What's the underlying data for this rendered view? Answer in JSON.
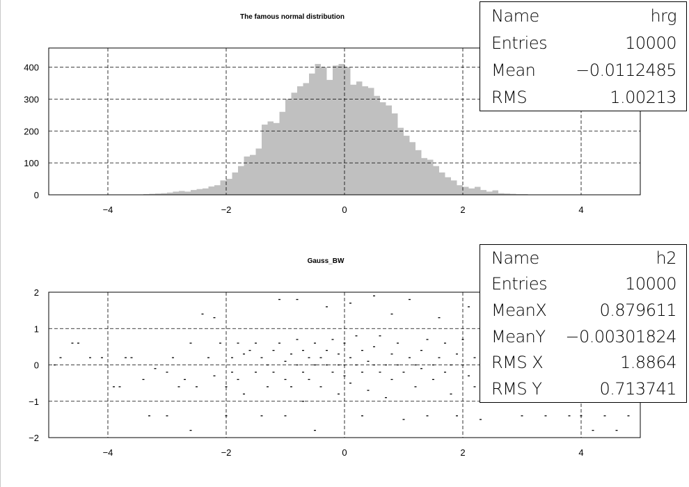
{
  "plots": [
    {
      "title": "The famous normal distribution",
      "stats": [
        {
          "label": "Name",
          "value": "hrg"
        },
        {
          "label": "Entries",
          "value": "10000"
        },
        {
          "label": "Mean",
          "value": "−0.0112485"
        },
        {
          "label": "RMS",
          "value": "1.00213"
        }
      ]
    },
    {
      "title": "Gauss_BW",
      "stats": [
        {
          "label": "Name",
          "value": "h2"
        },
        {
          "label": "Entries",
          "value": "10000"
        },
        {
          "label": "MeanX",
          "value": "0.879611"
        },
        {
          "label": "MeanY",
          "value": "−0.00301824"
        },
        {
          "label": "RMS X",
          "value": "1.8864"
        },
        {
          "label": "RMS Y",
          "value": "0.713741"
        }
      ]
    }
  ],
  "chart_data": [
    {
      "type": "bar",
      "title": "The famous normal distribution",
      "xlim": [
        -5,
        5
      ],
      "ylim": [
        0,
        460
      ],
      "xticks": [
        -4,
        -2,
        0,
        2,
        4
      ],
      "xtick_labels": [
        "−4",
        "−2",
        "0",
        "2",
        "4"
      ],
      "yticks": [
        0,
        100,
        200,
        300,
        400
      ],
      "ytick_labels": [
        "0",
        "100",
        "200",
        "300",
        "400"
      ],
      "grid": true,
      "fill_color": "#c0c0c0",
      "bin_width": 0.1,
      "bin_centers": [
        -3.55,
        -3.45,
        -3.35,
        -3.25,
        -3.15,
        -3.05,
        -2.95,
        -2.85,
        -2.75,
        -2.65,
        -2.55,
        -2.45,
        -2.35,
        -2.25,
        -2.15,
        -2.05,
        -1.95,
        -1.85,
        -1.75,
        -1.65,
        -1.55,
        -1.45,
        -1.35,
        -1.25,
        -1.15,
        -1.05,
        -0.95,
        -0.85,
        -0.75,
        -0.65,
        -0.55,
        -0.45,
        -0.35,
        -0.25,
        -0.15,
        -0.05,
        0.05,
        0.15,
        0.25,
        0.35,
        0.45,
        0.55,
        0.65,
        0.75,
        0.85,
        0.95,
        1.05,
        1.15,
        1.25,
        1.35,
        1.45,
        1.55,
        1.65,
        1.75,
        1.85,
        1.95,
        2.05,
        2.15,
        2.25,
        2.35,
        2.45,
        2.55,
        2.65,
        2.75,
        2.85,
        2.95,
        3.05,
        3.15,
        3.25,
        3.35,
        3.45
      ],
      "values": [
        1,
        1,
        2,
        3,
        4,
        5,
        7,
        10,
        12,
        10,
        15,
        18,
        20,
        26,
        30,
        45,
        50,
        70,
        90,
        120,
        125,
        145,
        220,
        230,
        225,
        260,
        300,
        320,
        340,
        350,
        380,
        410,
        400,
        360,
        405,
        410,
        400,
        345,
        355,
        340,
        335,
        310,
        290,
        280,
        255,
        210,
        185,
        165,
        140,
        115,
        110,
        90,
        70,
        55,
        45,
        30,
        25,
        20,
        25,
        15,
        10,
        14,
        5,
        4,
        3,
        2,
        2,
        1,
        1,
        1,
        1
      ]
    },
    {
      "type": "scatter",
      "title": "Gauss_BW",
      "xlim": [
        -5,
        5
      ],
      "ylim": [
        -2,
        2
      ],
      "xticks": [
        -4,
        -2,
        0,
        2,
        4
      ],
      "xtick_labels": [
        "−4",
        "−2",
        "0",
        "2",
        "4"
      ],
      "yticks": [
        -2,
        -1,
        0,
        1,
        2
      ],
      "ytick_labels": [
        "−2",
        "−1",
        "0",
        "1",
        "2"
      ],
      "grid": true,
      "points": [
        [
          -4.9,
          0.0
        ],
        [
          -4.8,
          0.2
        ],
        [
          -4.6,
          0.6
        ],
        [
          -4.5,
          0.6
        ],
        [
          -4.3,
          0.2
        ],
        [
          -4.1,
          0.2
        ],
        [
          -3.9,
          -0.6
        ],
        [
          -3.8,
          -0.6
        ],
        [
          -3.7,
          0.2
        ],
        [
          -3.6,
          0.2
        ],
        [
          -3.4,
          -0.4
        ],
        [
          -3.3,
          -1.4
        ],
        [
          -3.2,
          -0.1
        ],
        [
          -3.0,
          -0.2
        ],
        [
          -3.0,
          -1.4
        ],
        [
          -2.9,
          0.2
        ],
        [
          -2.8,
          -0.6
        ],
        [
          -2.7,
          -0.4
        ],
        [
          -2.6,
          0.6
        ],
        [
          -2.6,
          -1.8
        ],
        [
          -2.5,
          -0.6
        ],
        [
          -2.4,
          1.4
        ],
        [
          -2.3,
          0.2
        ],
        [
          -2.2,
          -0.3
        ],
        [
          -2.2,
          1.3
        ],
        [
          -2.1,
          0.6
        ],
        [
          -2.0,
          -0.6
        ],
        [
          -2.0,
          -1.4
        ],
        [
          -1.9,
          0.2
        ],
        [
          -1.9,
          -0.2
        ],
        [
          -1.8,
          0.6
        ],
        [
          -1.8,
          -0.4
        ],
        [
          -1.7,
          0.3
        ],
        [
          -1.7,
          -0.8
        ],
        [
          -1.6,
          0.4
        ],
        [
          -1.5,
          -0.2
        ],
        [
          -1.5,
          0.6
        ],
        [
          -1.4,
          0.2
        ],
        [
          -1.4,
          -1.4
        ],
        [
          -1.3,
          0.0
        ],
        [
          -1.3,
          -0.6
        ],
        [
          -1.2,
          0.4
        ],
        [
          -1.2,
          -0.2
        ],
        [
          -1.1,
          0.6
        ],
        [
          -1.1,
          1.8
        ],
        [
          -1.0,
          0.1
        ],
        [
          -1.0,
          -0.4
        ],
        [
          -1.0,
          -1.4
        ],
        [
          -0.9,
          0.3
        ],
        [
          -0.9,
          -0.6
        ],
        [
          -0.8,
          0.0
        ],
        [
          -0.8,
          0.7
        ],
        [
          -0.8,
          1.8
        ],
        [
          -0.7,
          -0.2
        ],
        [
          -0.7,
          0.4
        ],
        [
          -0.7,
          -1.0
        ],
        [
          -0.6,
          0.2
        ],
        [
          -0.6,
          -0.4
        ],
        [
          -0.5,
          0.0
        ],
        [
          -0.5,
          0.6
        ],
        [
          -0.5,
          -1.8
        ],
        [
          -0.4,
          0.2
        ],
        [
          -0.4,
          -0.6
        ],
        [
          -0.3,
          0.0
        ],
        [
          -0.3,
          0.4
        ],
        [
          -0.3,
          1.6
        ],
        [
          -0.2,
          -0.2
        ],
        [
          -0.2,
          0.7
        ],
        [
          -0.1,
          0.0
        ],
        [
          -0.1,
          -0.8
        ],
        [
          -0.1,
          0.3
        ],
        [
          0.0,
          0.0
        ],
        [
          0.0,
          -0.3
        ],
        [
          0.0,
          0.6
        ],
        [
          0.1,
          0.2
        ],
        [
          0.1,
          -0.5
        ],
        [
          0.1,
          1.7
        ],
        [
          0.2,
          0.0
        ],
        [
          0.2,
          0.8
        ],
        [
          0.3,
          -0.2
        ],
        [
          0.3,
          0.4
        ],
        [
          0.3,
          -1.4
        ],
        [
          0.4,
          0.1
        ],
        [
          0.4,
          -0.7
        ],
        [
          0.5,
          0.0
        ],
        [
          0.5,
          0.5
        ],
        [
          0.5,
          1.9
        ],
        [
          0.6,
          -0.2
        ],
        [
          0.6,
          0.8
        ],
        [
          0.7,
          0.0
        ],
        [
          0.7,
          -0.9
        ],
        [
          0.8,
          0.3
        ],
        [
          0.8,
          -0.4
        ],
        [
          0.8,
          1.4
        ],
        [
          0.9,
          0.0
        ],
        [
          0.9,
          0.6
        ],
        [
          1.0,
          -0.2
        ],
        [
          1.0,
          -1.5
        ],
        [
          1.1,
          0.2
        ],
        [
          1.1,
          1.8
        ],
        [
          1.2,
          0.0
        ],
        [
          1.2,
          -0.6
        ],
        [
          1.3,
          0.4
        ],
        [
          1.3,
          -0.1
        ],
        [
          1.4,
          0.7
        ],
        [
          1.4,
          -1.4
        ],
        [
          1.5,
          0.0
        ],
        [
          1.5,
          -0.4
        ],
        [
          1.6,
          0.2
        ],
        [
          1.6,
          1.3
        ],
        [
          1.7,
          -0.2
        ],
        [
          1.7,
          0.6
        ],
        [
          1.8,
          0.0
        ],
        [
          1.8,
          -0.8
        ],
        [
          1.9,
          0.3
        ],
        [
          1.9,
          -1.4
        ],
        [
          2.0,
          0.0
        ],
        [
          2.0,
          0.7
        ],
        [
          2.1,
          -0.3
        ],
        [
          2.1,
          1.6
        ],
        [
          2.2,
          0.2
        ],
        [
          2.2,
          -0.6
        ],
        [
          2.3,
          0.0
        ],
        [
          2.3,
          -1.5
        ],
        [
          2.4,
          0.4
        ],
        [
          2.5,
          -0.2
        ],
        [
          2.6,
          0.0
        ],
        [
          2.7,
          0.6
        ],
        [
          2.8,
          -0.4
        ],
        [
          2.9,
          0.2
        ],
        [
          3.0,
          -1.4
        ],
        [
          3.2,
          -0.6
        ],
        [
          3.4,
          -1.4
        ],
        [
          3.6,
          -0.6
        ],
        [
          3.8,
          -1.4
        ],
        [
          4.0,
          -1.4
        ],
        [
          4.1,
          -0.6
        ],
        [
          4.2,
          -1.8
        ],
        [
          4.4,
          -1.4
        ],
        [
          4.6,
          -1.8
        ],
        [
          4.8,
          -1.4
        ]
      ]
    }
  ]
}
